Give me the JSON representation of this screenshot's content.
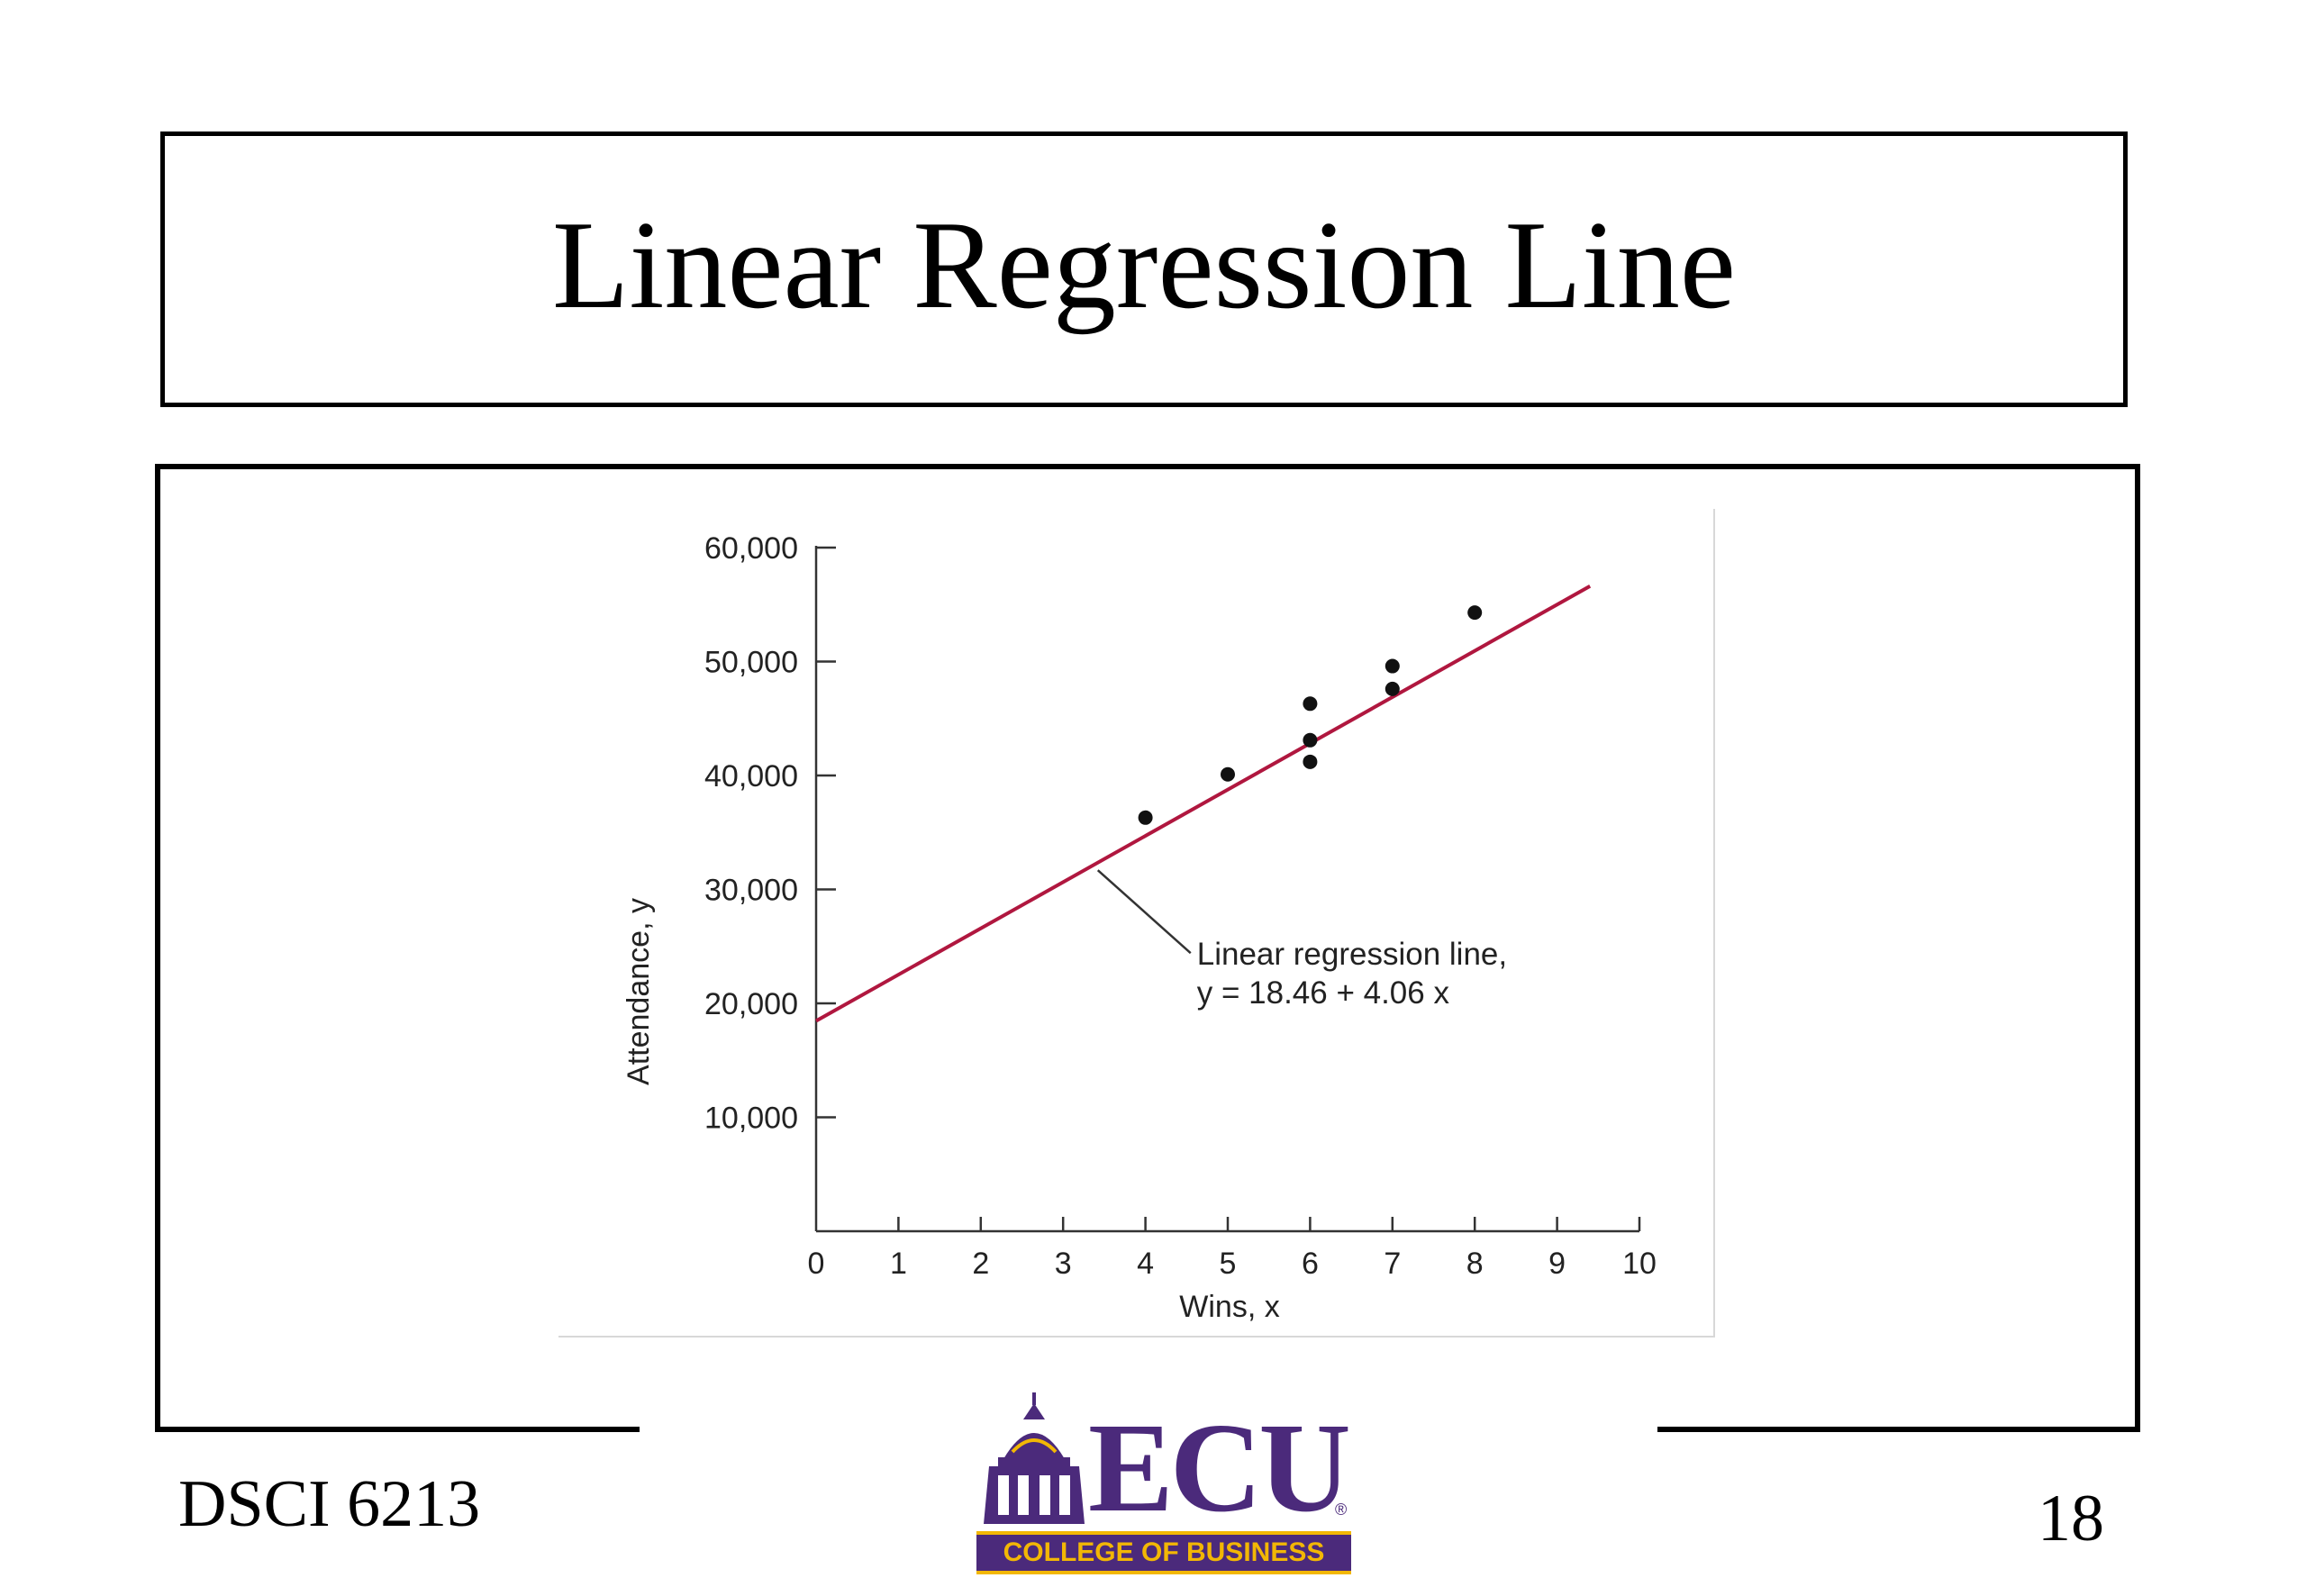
{
  "slide": {
    "title": "Linear Regression Line",
    "course": "DSCI 6213",
    "page_number": "18"
  },
  "logo": {
    "wordmark": "ECU",
    "registered": "®",
    "subtitle": "COLLEGE OF BUSINESS",
    "colors": {
      "purple": "#4b2a7b",
      "gold": "#f2b705"
    }
  },
  "chart_data": {
    "type": "scatter",
    "xlabel": "Wins, x",
    "ylabel": "Attendance, y",
    "xlim": [
      0,
      10
    ],
    "ylim": [
      0,
      60000
    ],
    "x_ticks": [
      0,
      1,
      2,
      3,
      4,
      5,
      6,
      7,
      8,
      9,
      10
    ],
    "x_tick_labels": [
      "0",
      "1",
      "2",
      "3",
      "4",
      "5",
      "6",
      "7",
      "8",
      "9",
      "10"
    ],
    "y_ticks": [
      10000,
      20000,
      30000,
      40000,
      50000,
      60000
    ],
    "y_tick_labels": [
      "10,000",
      "20,000",
      "30,000",
      "40,000",
      "50,000",
      "60,000"
    ],
    "grid": false,
    "points": [
      {
        "x": 4,
        "y": 36300
      },
      {
        "x": 5,
        "y": 40100
      },
      {
        "x": 6,
        "y": 41200
      },
      {
        "x": 6,
        "y": 43100
      },
      {
        "x": 6,
        "y": 46300
      },
      {
        "x": 7,
        "y": 47600
      },
      {
        "x": 7,
        "y": 49600
      },
      {
        "x": 8,
        "y": 54300
      }
    ],
    "regression": {
      "intercept": 18460,
      "slope": 4060,
      "x_range": [
        0,
        9.4
      ],
      "color": "#b0173f"
    },
    "annotation": {
      "line1": "Linear regression line,",
      "line2": "y = 18.46 + 4.06 x",
      "anchor_x": 3.4,
      "anchor_y": 32000
    }
  }
}
